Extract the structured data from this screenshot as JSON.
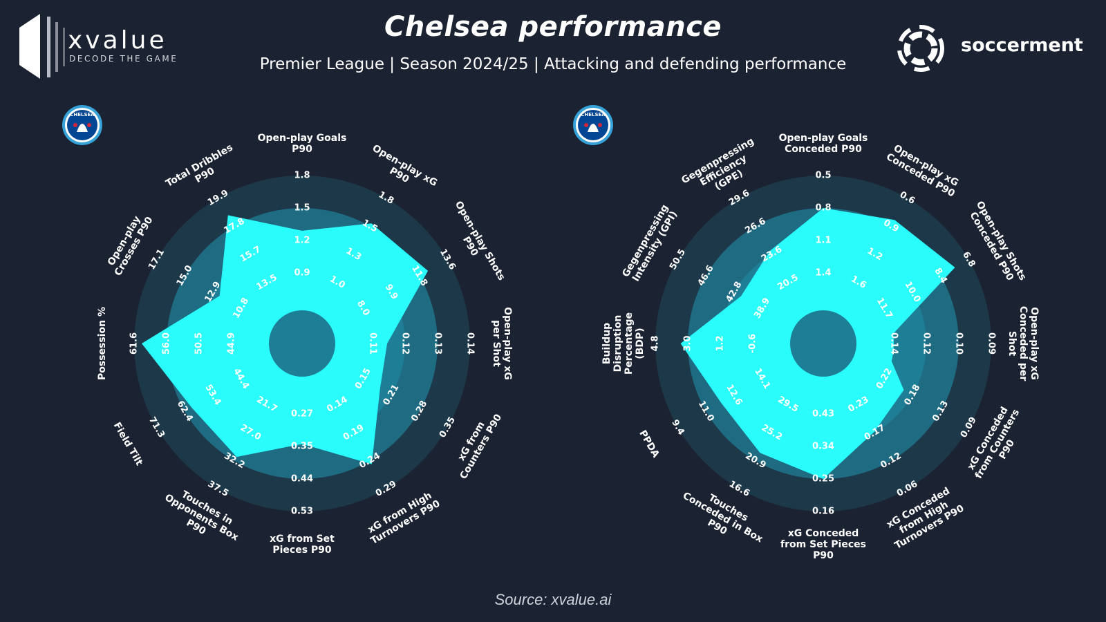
{
  "header": {
    "title": "Chelsea performance",
    "subtitle": "Premier League | Season 2024/25 | Attacking and defending performance"
  },
  "branding": {
    "left_logo_name": "xvalue",
    "left_logo_tagline": "DECODE THE GAME",
    "right_logo_name": "soccerment",
    "badge_text": "CHELSEA"
  },
  "footer": {
    "source": "Source: xvalue.ai"
  },
  "colors": {
    "background": "#1b2231",
    "ring_outer": "#1d3848",
    "ring_mid": "#1e6b82",
    "ring_inner": "#1e7e96",
    "fill": "#2afcfc",
    "badge_blue": "#034694",
    "badge_ring": "#36a2d8"
  },
  "chart_data": [
    {
      "type": "radar",
      "name": "Attacking",
      "axes": [
        {
          "label": [
            "Open-play Goals",
            "P90"
          ],
          "ticks": [
            "0.9",
            "1.2",
            "1.5",
            "1.8"
          ],
          "value": 1.29
        },
        {
          "label": [
            "Open-play xG",
            "P90"
          ],
          "ticks": [
            "1.0",
            "1.3",
            "1.5",
            "1.8"
          ],
          "value": 1.56
        },
        {
          "label": [
            "Open-play Shots",
            "P90"
          ],
          "ticks": [
            "8.0",
            "9.9",
            "11.8",
            "13.6"
          ],
          "value": 12.3
        },
        {
          "label": [
            "Open-play xG",
            "per Shot"
          ],
          "ticks": [
            "0.11",
            "0.12",
            "0.13",
            "0.14"
          ],
          "value": 0.1145
        },
        {
          "label": [
            "xG from",
            "Counters P90"
          ],
          "ticks": [
            "0.15",
            "0.21",
            "0.28",
            "0.35"
          ],
          "value": 0.19
        },
        {
          "label": [
            "xG from High",
            "Turnovers P90"
          ],
          "ticks": [
            "0.14",
            "0.19",
            "0.24",
            "0.29"
          ],
          "value": 0.246
        },
        {
          "label": [
            "xG from Set",
            "Pieces P90"
          ],
          "ticks": [
            "0.27",
            "0.35",
            "0.44",
            "0.53"
          ],
          "value": 0.35
        },
        {
          "label": [
            "Touches in",
            "Opponents Box",
            "P90"
          ],
          "ticks": [
            "21.7",
            "27.0",
            "32.2",
            "37.5"
          ],
          "value": 31.5
        },
        {
          "label": [
            "Field Tilt"
          ],
          "ticks": [
            "44.4",
            "53.4",
            "62.4",
            "71.3"
          ],
          "value": 60.2
        },
        {
          "label": [
            "Possession %"
          ],
          "ticks": [
            "44.9",
            "50.5",
            "56.0",
            "61.6"
          ],
          "value": 60.3
        },
        {
          "label": [
            "Open-play",
            "Crosses P90"
          ],
          "ticks": [
            "10.8",
            "12.9",
            "15.0",
            "17.1"
          ],
          "value": 12.4
        },
        {
          "label": [
            "Total Dribbles",
            "P90"
          ],
          "ticks": [
            "13.5",
            "15.7",
            "17.8",
            "19.9"
          ],
          "value": 18.6
        }
      ]
    },
    {
      "type": "radar",
      "name": "Defending",
      "axes": [
        {
          "label": [
            "Open-play Goals",
            "Conceded P90"
          ],
          "ticks": [
            "1.4",
            "1.1",
            "0.8",
            "0.5"
          ],
          "value": 0.8
        },
        {
          "label": [
            "Open-play xG",
            "Conceded P90"
          ],
          "ticks": [
            "1.6",
            "1.2",
            "0.9",
            "0.6"
          ],
          "value": 0.86
        },
        {
          "label": [
            "Open-play Shots",
            "Conceded P90"
          ],
          "ticks": [
            "11.7",
            "10.0",
            "8.4",
            "6.8"
          ],
          "value": 7.6
        },
        {
          "label": [
            "Open-play xG",
            "Conceded per",
            "Shot"
          ],
          "ticks": [
            "0.14",
            "0.12",
            "0.10",
            "0.09"
          ],
          "value": 0.145
        },
        {
          "label": [
            "xG Conceded",
            "from Counters",
            "P90"
          ],
          "ticks": [
            "0.22",
            "0.18",
            "0.13",
            "0.09"
          ],
          "value": 0.19
        },
        {
          "label": [
            "xG Conceded",
            "from High",
            "Turnovers P90"
          ],
          "ticks": [
            "0.23",
            "0.17",
            "0.12",
            "0.06"
          ],
          "value": 0.175
        },
        {
          "label": [
            "xG Conceded",
            "from Set Pieces",
            "P90"
          ],
          "ticks": [
            "0.43",
            "0.34",
            "0.25",
            "0.16"
          ],
          "value": 0.25
        },
        {
          "label": [
            "Touches",
            "Conceded in Box",
            "P90"
          ],
          "ticks": [
            "29.5",
            "25.2",
            "20.9",
            "16.6"
          ],
          "value": 22.1
        },
        {
          "label": [
            "PPDA"
          ],
          "ticks": [
            "14.1",
            "12.6",
            "11.0",
            "9.4"
          ],
          "value": 11.8
        },
        {
          "label": [
            "Buildup",
            "Disruption",
            "Percentage",
            "(BDP)"
          ],
          "ticks": [
            "-0.6",
            "1.2",
            "3.0",
            "4.8"
          ],
          "value": 3.4
        },
        {
          "label": [
            "Gegenpressing",
            "Intensity (GPI)"
          ],
          "ticks": [
            "38.9",
            "42.8",
            "46.6",
            "50.5"
          ],
          "value": 41.8
        },
        {
          "label": [
            "Gegenpressing",
            "Efficiency",
            "(GPE)"
          ],
          "ticks": [
            "20.5",
            "23.6",
            "26.6",
            "29.6"
          ],
          "value": 23.9
        }
      ]
    }
  ]
}
